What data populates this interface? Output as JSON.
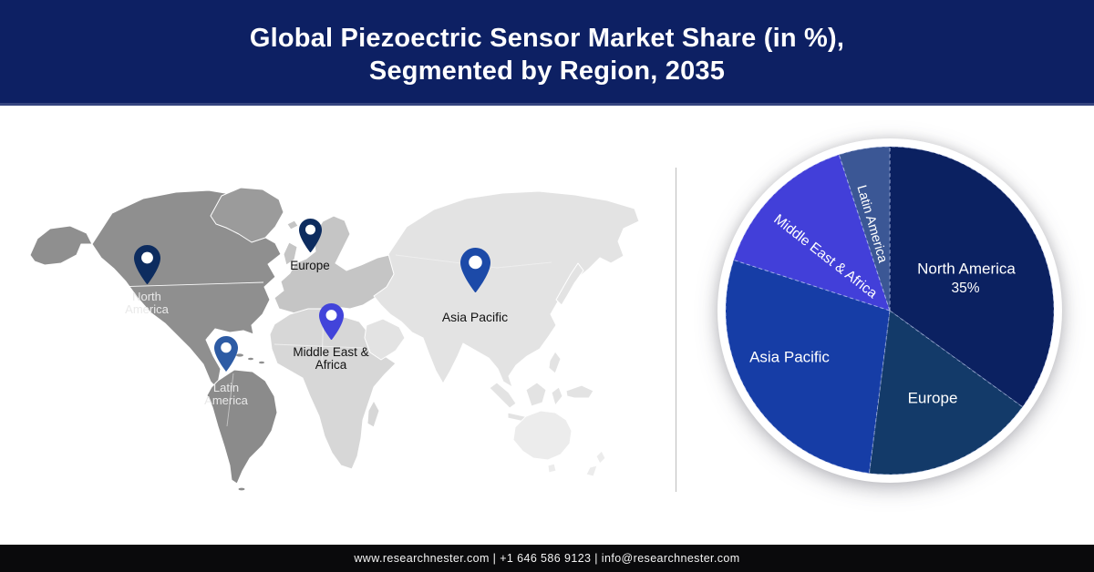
{
  "header": {
    "title_line1": "Global Piezoectric Sensor Market Share (in %),",
    "title_line2": "Segmented by Region, 2035",
    "bg_color": "#0d2063",
    "text_color": "#ffffff"
  },
  "map": {
    "pins": [
      {
        "id": "north-america",
        "label_lines": [
          "North",
          "America"
        ],
        "pin_color": "#0d2c5f",
        "label_color": "#e9e9e9"
      },
      {
        "id": "europe",
        "label_lines": [
          "Europe"
        ],
        "pin_color": "#0d2c5f",
        "label_color": "#111111"
      },
      {
        "id": "latin-america",
        "label_lines": [
          "Latin",
          "America"
        ],
        "pin_color": "#2d5ba4",
        "label_color": "#e9e9e9"
      },
      {
        "id": "middle-east-africa",
        "label_lines": [
          "Middle East &",
          "Africa"
        ],
        "pin_color": "#4244da",
        "label_color": "#111111"
      },
      {
        "id": "asia-pacific",
        "label_lines": [
          "Asia Pacific"
        ],
        "pin_color": "#1c4aa8",
        "label_color": "#111111"
      }
    ]
  },
  "chart_data": {
    "type": "pie",
    "title": "Global Piezoectric Sensor Market Share (in %), Segmented by Region, 2035",
    "units": "%",
    "direction": "clockwise",
    "start_angle_deg_from_12oclock": 0,
    "slices": [
      {
        "label": "North America",
        "value": 35,
        "value_label": "35%",
        "color": "#0b2161"
      },
      {
        "label": "Europe",
        "value": 17,
        "color": "#133a69"
      },
      {
        "label": "Asia Pacific",
        "value": 28,
        "color": "#163da6"
      },
      {
        "label": "Middle East & Africa",
        "value": 15,
        "color": "#423fd9"
      },
      {
        "label": "Latin America",
        "value": 5,
        "color": "#3b5795"
      }
    ],
    "legend": "labels-inside-slices"
  },
  "footer": {
    "text": "www.researchnester.com | +1 646 586 9123 | info@researchnester.com",
    "bg_color": "#0a0a0c",
    "text_color": "#f4f4f4"
  }
}
